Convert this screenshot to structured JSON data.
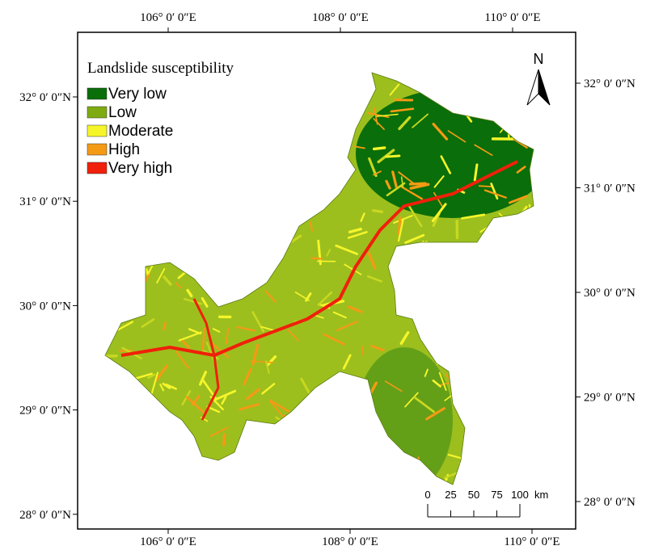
{
  "legend": {
    "title": "Landslide susceptibility",
    "items": [
      {
        "label": "Very low",
        "color": "#0a6e0a"
      },
      {
        "label": "Low",
        "color": "#7fab12"
      },
      {
        "label": "Moderate",
        "color": "#f5f52a"
      },
      {
        "label": "High",
        "color": "#f59a14"
      },
      {
        "label": "Very high",
        "color": "#f0200a"
      }
    ]
  },
  "north_arrow": "N",
  "longitude_ticks": [
    {
      "value": 106,
      "label": "106° 0′ 0″E"
    },
    {
      "value": 108,
      "label": "108° 0′ 0″E"
    },
    {
      "value": 110,
      "label": "110° 0′ 0″E"
    }
  ],
  "latitude_ticks": [
    {
      "value": 32,
      "label": "32° 0′ 0″N"
    },
    {
      "value": 31,
      "label": "31° 0′ 0″N"
    },
    {
      "value": 30,
      "label": "30° 0′ 0″N"
    },
    {
      "value": 29,
      "label": "29° 0′ 0″N"
    },
    {
      "value": 28,
      "label": "28° 0′ 0″N"
    }
  ],
  "scale_bar": {
    "values": [
      0,
      25,
      50,
      75,
      100
    ],
    "unit": "km"
  }
}
